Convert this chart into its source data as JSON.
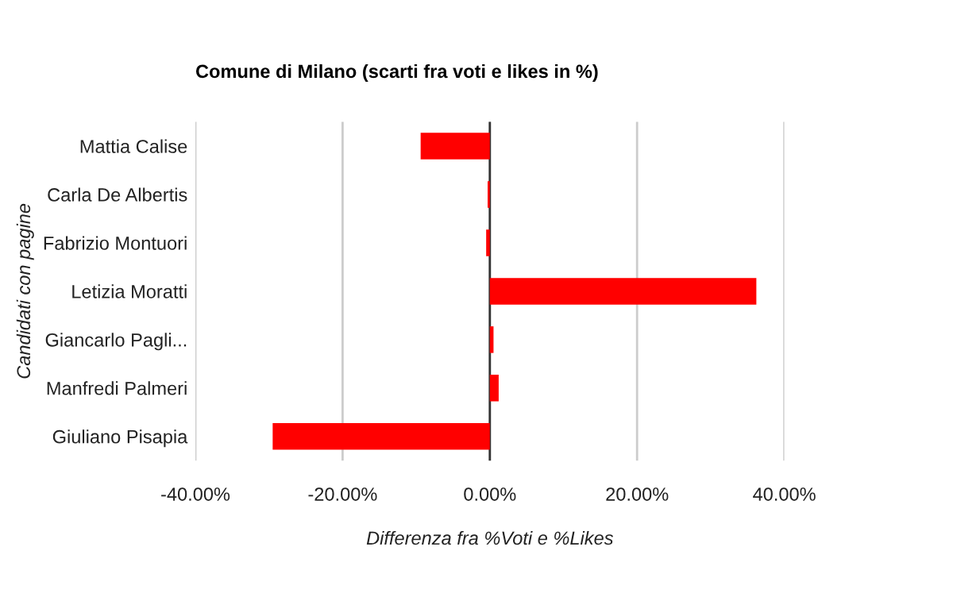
{
  "chart_data": {
    "type": "bar",
    "orientation": "horizontal",
    "title": "Comune di Milano (scarti fra voti e likes in %)",
    "xlabel": "Differenza fra %Voti e %Likes",
    "ylabel": "Candidati con pagine",
    "categories": [
      "Mattia Calise",
      "Carla De Albertis",
      "Fabrizio Montuori",
      "Letizia Moratti",
      "Giancarlo Pagli...",
      "Manfredi Palmeri",
      "Giuliano Pisapia"
    ],
    "values": [
      -9.4,
      -0.3,
      -0.5,
      36.2,
      0.5,
      1.2,
      -29.5
    ],
    "color": "#ff0000",
    "xlim": [
      -40,
      40
    ],
    "xticks": [
      {
        "value": -40,
        "label": "-40.00%"
      },
      {
        "value": -20,
        "label": "-20.00%"
      },
      {
        "value": 0,
        "label": "0.00%"
      },
      {
        "value": 20,
        "label": "20.00%"
      },
      {
        "value": 40,
        "label": "40.00%"
      }
    ],
    "grid": "x"
  }
}
